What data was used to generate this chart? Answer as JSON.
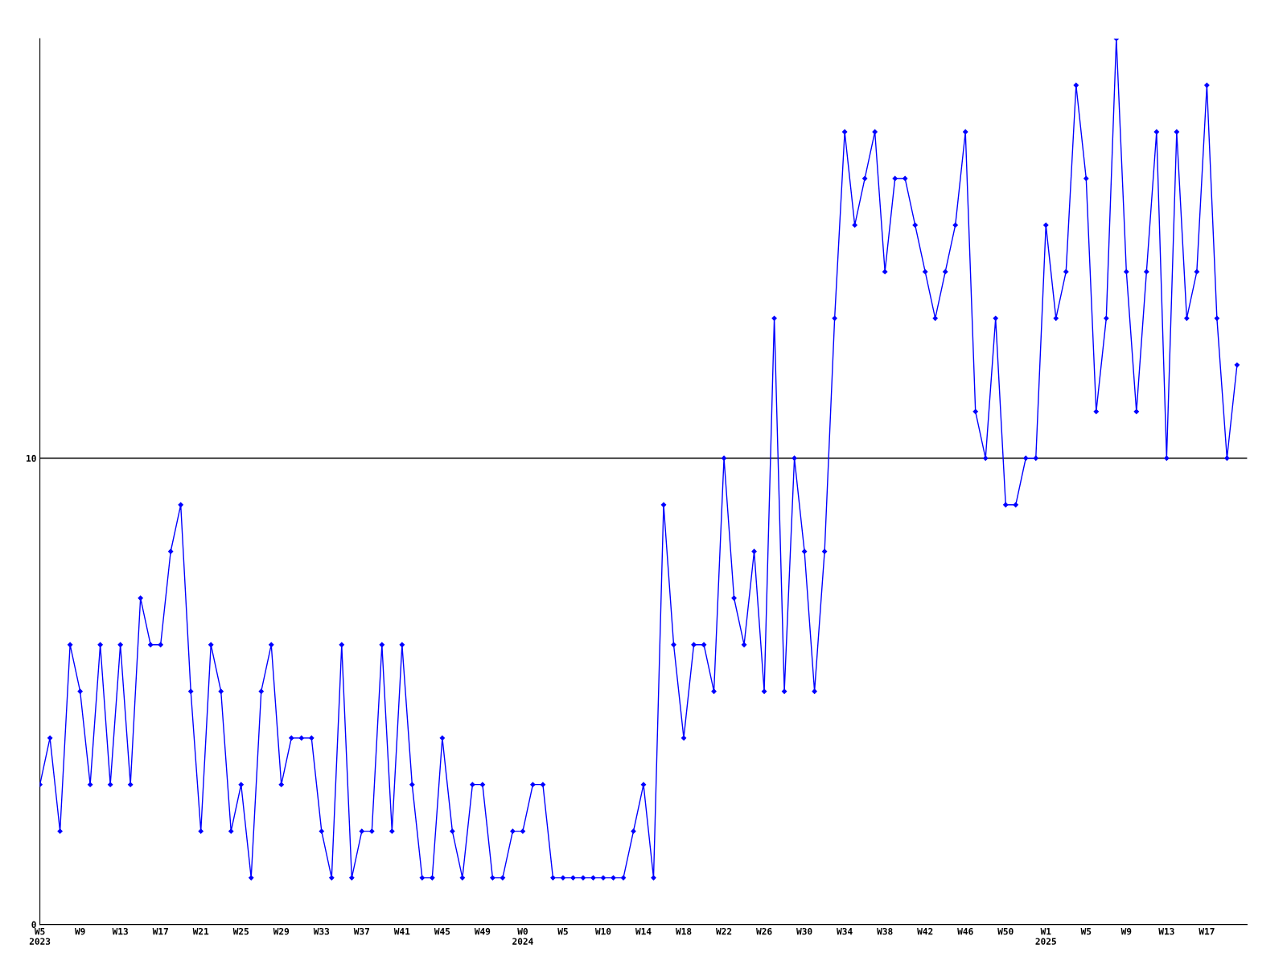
{
  "chart_data": {
    "type": "line",
    "categories": [
      "W5\n2023",
      null,
      null,
      null,
      "W9",
      null,
      null,
      null,
      "W13",
      null,
      null,
      null,
      "W17",
      null,
      null,
      null,
      "W21",
      null,
      null,
      null,
      "W25",
      null,
      null,
      null,
      "W29",
      null,
      null,
      null,
      "W33",
      null,
      null,
      null,
      "W37",
      null,
      null,
      null,
      "W41",
      null,
      null,
      null,
      "W45",
      null,
      null,
      null,
      "W49",
      null,
      null,
      null,
      "W0\n2024",
      null,
      null,
      null,
      "W5",
      null,
      null,
      null,
      "W10",
      null,
      null,
      null,
      "W14",
      null,
      null,
      null,
      "W18",
      null,
      null,
      null,
      "W22",
      null,
      null,
      null,
      "W26",
      null,
      null,
      null,
      "W30",
      null,
      null,
      null,
      "W34",
      null,
      null,
      null,
      "W38",
      null,
      null,
      null,
      "W42",
      null,
      null,
      null,
      "W46",
      null,
      null,
      null,
      "W50",
      null,
      null,
      null,
      "W1\n2025",
      null,
      null,
      null,
      "W5",
      null,
      null,
      null,
      "W9",
      null,
      null,
      null,
      "W13",
      null,
      null,
      null,
      "W17",
      null,
      null,
      null
    ],
    "series": [
      {
        "color": "#0000ff",
        "values": [
          3,
          4,
          2,
          6,
          5,
          3,
          6,
          3,
          6,
          3,
          7,
          6,
          6,
          8,
          9,
          5,
          2,
          6,
          5,
          2,
          3,
          1,
          5,
          6,
          3,
          4,
          4,
          4,
          2,
          1,
          6,
          1,
          2,
          2,
          6,
          2,
          6,
          3,
          1,
          1,
          4,
          2,
          1,
          3,
          3,
          1,
          1,
          2,
          2,
          3,
          3,
          1,
          1,
          1,
          1,
          1,
          1,
          1,
          1,
          2,
          3,
          1,
          9,
          6,
          4,
          6,
          6,
          5,
          10,
          7,
          6,
          8,
          5,
          13,
          5,
          10,
          8,
          5,
          8,
          13,
          17,
          15,
          16,
          17,
          14,
          16,
          16,
          15,
          14,
          13,
          14,
          15,
          17,
          11,
          10,
          13,
          9,
          9,
          10,
          10,
          15,
          13,
          14,
          18,
          16,
          11,
          13,
          19,
          14,
          11,
          14,
          17,
          10,
          17,
          13,
          14,
          18,
          13,
          10,
          12
        ]
      }
    ],
    "ylim": [
      0,
      19
    ],
    "yticks": [
      0,
      10
    ],
    "grid": "y",
    "marker": "diamond",
    "line_style": "solid",
    "legend": false
  }
}
